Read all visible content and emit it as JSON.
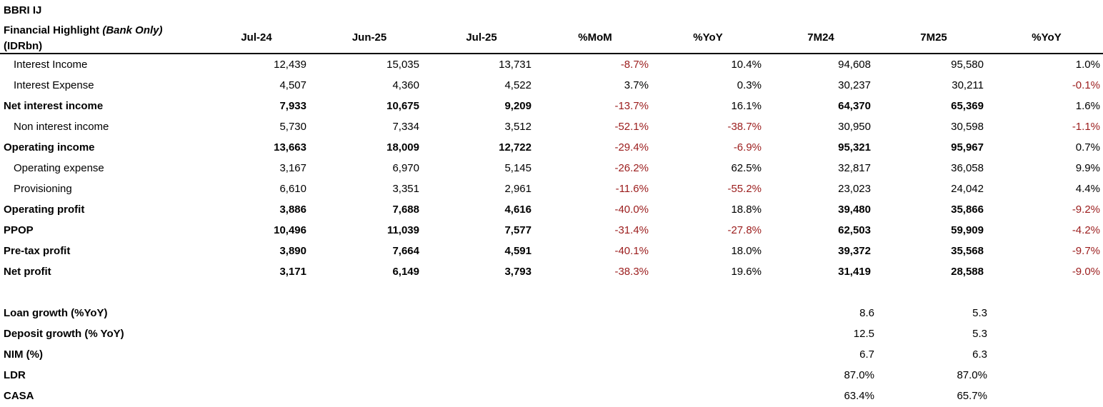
{
  "ticker": "BBRI IJ",
  "header": {
    "title_main": "Financial Highlight ",
    "title_italic": "(Bank Only)",
    "title_unit": "(IDRbn)",
    "columns": [
      "Jul-24",
      "Jun-25",
      "Jul-25",
      "%MoM",
      "%YoY",
      "7M24",
      "7M25",
      "%YoY"
    ]
  },
  "rows": [
    {
      "label": "Interest Income",
      "values": [
        "12,439",
        "15,035",
        "13,731",
        "-8.7%",
        "10.4%",
        "94,608",
        "95,580",
        "1.0%"
      ]
    },
    {
      "label": "Interest Expense",
      "values": [
        "4,507",
        "4,360",
        "4,522",
        "3.7%",
        "0.3%",
        "30,237",
        "30,211",
        "-0.1%"
      ]
    },
    {
      "label": "Net interest income",
      "values": [
        "7,933",
        "10,675",
        "9,209",
        "-13.7%",
        "16.1%",
        "64,370",
        "65,369",
        "1.6%"
      ]
    },
    {
      "label": "Non interest income",
      "values": [
        "5,730",
        "7,334",
        "3,512",
        "-52.1%",
        "-38.7%",
        "30,950",
        "30,598",
        "-1.1%"
      ]
    },
    {
      "label": "Operating income",
      "values": [
        "13,663",
        "18,009",
        "12,722",
        "-29.4%",
        "-6.9%",
        "95,321",
        "95,967",
        "0.7%"
      ]
    },
    {
      "label": "Operating expense",
      "values": [
        "3,167",
        "6,970",
        "5,145",
        "-26.2%",
        "62.5%",
        "32,817",
        "36,058",
        "9.9%"
      ]
    },
    {
      "label": "Provisioning",
      "values": [
        "6,610",
        "3,351",
        "2,961",
        "-11.6%",
        "-55.2%",
        "23,023",
        "24,042",
        "4.4%"
      ]
    },
    {
      "label": "Operating profit",
      "values": [
        "3,886",
        "7,688",
        "4,616",
        "-40.0%",
        "18.8%",
        "39,480",
        "35,866",
        "-9.2%"
      ]
    },
    {
      "label": "PPOP",
      "values": [
        "10,496",
        "11,039",
        "7,577",
        "-31.4%",
        "-27.8%",
        "62,503",
        "59,909",
        "-4.2%"
      ]
    },
    {
      "label": "Pre-tax profit",
      "values": [
        "3,890",
        "7,664",
        "4,591",
        "-40.1%",
        "18.0%",
        "39,372",
        "35,568",
        "-9.7%"
      ]
    },
    {
      "label": "Net profit",
      "values": [
        "3,171",
        "6,149",
        "3,793",
        "-38.3%",
        "19.6%",
        "31,419",
        "28,588",
        "-9.0%"
      ]
    }
  ],
  "metrics": [
    {
      "label": "Loan growth (%YoY)",
      "values": [
        "8.6",
        "5.3"
      ]
    },
    {
      "label": "Deposit growth (% YoY)",
      "values": [
        "12.5",
        "5.3"
      ]
    },
    {
      "label": "NIM (%)",
      "values": [
        "6.7",
        "6.3"
      ]
    },
    {
      "label": "LDR",
      "values": [
        "87.0%",
        "87.0%"
      ]
    },
    {
      "label": "CASA",
      "values": [
        "63.4%",
        "65.7%"
      ]
    }
  ],
  "colors": {
    "negative": "#9b1c1c",
    "text": "#000000"
  }
}
